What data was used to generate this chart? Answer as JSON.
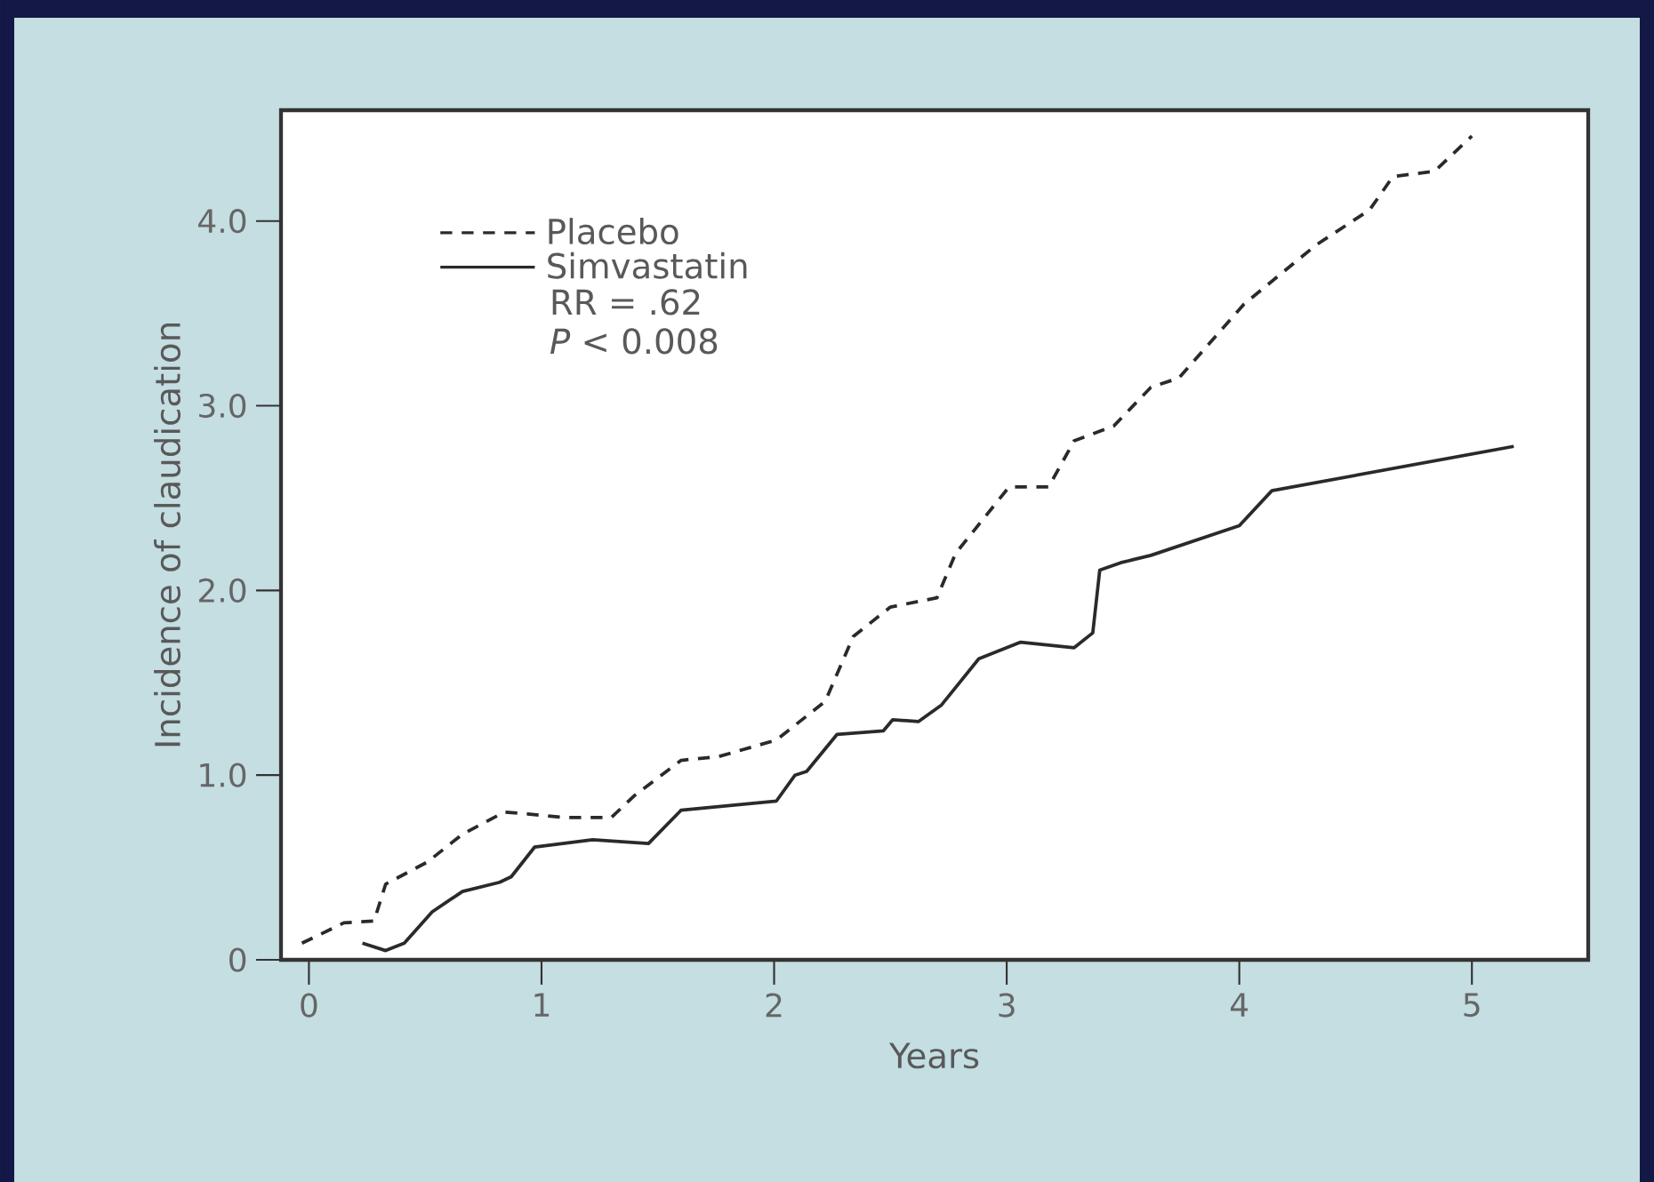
{
  "chart_data": {
    "type": "line",
    "xlabel": "Years",
    "ylabel": "Incidence of claudication",
    "xlim": [
      -0.12,
      5.5
    ],
    "ylim": [
      0,
      4.6
    ],
    "xticks": [
      0,
      1,
      2,
      3,
      4,
      5
    ],
    "yticks": [
      0,
      {
        "value": 1,
        "label": "1.0"
      },
      {
        "value": 2,
        "label": "2.0"
      },
      {
        "value": 3,
        "label": "3.0"
      },
      {
        "value": 4,
        "label": "4.0"
      }
    ],
    "legend": "top left",
    "grid": false,
    "annotations": [
      "RR = .62",
      "*P* < 0.008"
    ],
    "series": [
      {
        "name": "Placebo",
        "color": "#2a2a2a",
        "line_style": "dashed",
        "x": [
          -0.03,
          0.15,
          0.28,
          0.33,
          0.51,
          0.66,
          0.84,
          0.94,
          1.1,
          1.3,
          1.4,
          1.6,
          1.76,
          2.01,
          2.22,
          2.34,
          2.5,
          2.7,
          2.78,
          3.01,
          3.18,
          3.29,
          3.46,
          3.62,
          3.74,
          4.02,
          4.33,
          4.56,
          4.66,
          4.84,
          5.0
        ],
        "values": [
          0.09,
          0.2,
          0.21,
          0.41,
          0.53,
          0.68,
          0.8,
          0.79,
          0.77,
          0.77,
          0.89,
          1.08,
          1.1,
          1.19,
          1.4,
          1.75,
          1.91,
          1.96,
          2.2,
          2.56,
          2.56,
          2.81,
          2.89,
          3.1,
          3.15,
          3.55,
          3.87,
          4.06,
          4.24,
          4.27,
          4.46
        ]
      },
      {
        "name": "Simvastatin",
        "color": "#2a2a2a",
        "line_style": "solid",
        "x": [
          0.23,
          0.33,
          0.41,
          0.53,
          0.66,
          0.82,
          0.87,
          0.97,
          1.22,
          1.46,
          1.6,
          2.01,
          2.09,
          2.14,
          2.27,
          2.47,
          2.51,
          2.62,
          2.72,
          2.88,
          3.06,
          3.29,
          3.37,
          3.4,
          3.49,
          3.62,
          4.0,
          4.14,
          5.18
        ],
        "values": [
          0.09,
          0.05,
          0.09,
          0.26,
          0.37,
          0.42,
          0.45,
          0.61,
          0.65,
          0.63,
          0.81,
          0.86,
          1.0,
          1.02,
          1.22,
          1.24,
          1.3,
          1.29,
          1.38,
          1.63,
          1.72,
          1.69,
          1.77,
          2.11,
          2.15,
          2.19,
          2.35,
          2.54,
          2.78
        ]
      }
    ]
  }
}
